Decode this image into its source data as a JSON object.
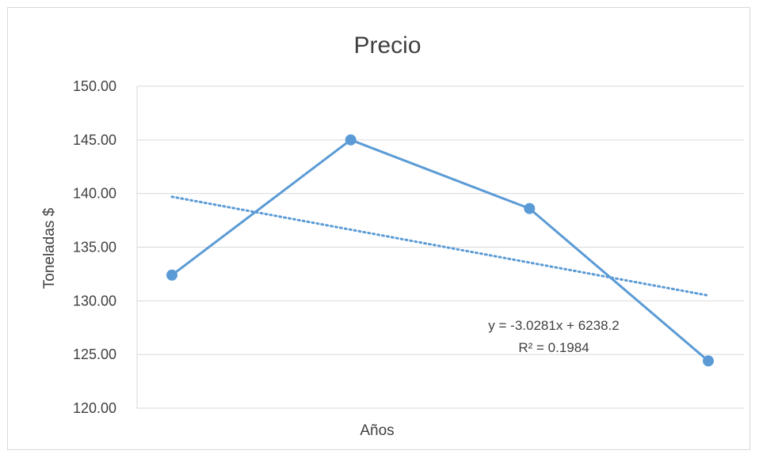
{
  "chart_data": {
    "type": "line",
    "title": "Precio",
    "xlabel": "Años",
    "ylabel": "Toneladas $",
    "ylim": [
      120,
      150
    ],
    "ytick_values": [
      120,
      125,
      130,
      135,
      140,
      145,
      150
    ],
    "ytick_labels": [
      "120.00",
      "125.00",
      "130.00",
      "135.00",
      "140.00",
      "145.00",
      "150.00"
    ],
    "grid": true,
    "series": [
      {
        "values": [
          132.4,
          145.0,
          138.6,
          124.4
        ],
        "color": "#5b9bd5"
      }
    ],
    "trendline": {
      "type": "linear",
      "start": 139.7,
      "end": 130.5,
      "color": "#5b9bd5",
      "style": "dotted",
      "equation": "y = -3.0281x + 6238.2",
      "r_squared": "R² = 0.1984"
    }
  }
}
